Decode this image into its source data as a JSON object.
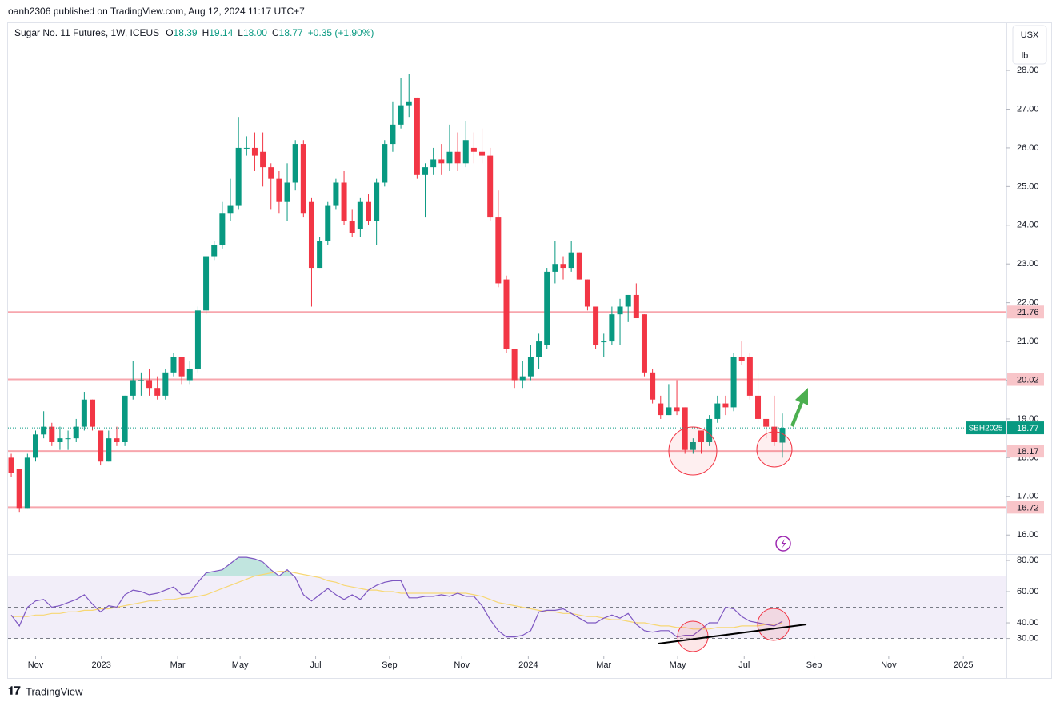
{
  "header": "oanh2306 published on TradingView.com, Aug 12, 2024 11:17 UTC+7",
  "footer": "TradingView",
  "chart_data": {
    "type": "candlestick",
    "title": "Sugar No. 11 Futures, 1W, ICEUS",
    "legend_values": [
      {
        "key": "O",
        "value": "18.39"
      },
      {
        "key": "H",
        "value": "19.14"
      },
      {
        "key": "L",
        "value": "18.00"
      },
      {
        "key": "C",
        "value": "18.77"
      }
    ],
    "change": "+0.35 (+1.90%)",
    "currency": "USX",
    "unit": "lb",
    "open": [
      18.0,
      17.7,
      16.7,
      18.0,
      18.6,
      18.8,
      18.4,
      18.5,
      18.5,
      18.8,
      19.5,
      18.7,
      17.9,
      18.5,
      18.4,
      19.6,
      20.0,
      20.0,
      19.8,
      19.6,
      20.2,
      20.6,
      20.0,
      20.3,
      21.8,
      23.2,
      23.5,
      24.3,
      24.5,
      26.0,
      26.0,
      25.9,
      25.5,
      25.2,
      24.6,
      25.1,
      26.1,
      24.6,
      22.9,
      23.6,
      24.5,
      25.1,
      24.1,
      23.9,
      24.6,
      24.1,
      25.1,
      26.1,
      26.6,
      27.1,
      27.3,
      25.3,
      25.5,
      25.7,
      25.6,
      25.9,
      25.6,
      26.0,
      25.9,
      25.8,
      24.2,
      22.6,
      20.8,
      20.0,
      20.1,
      20.6,
      20.9,
      22.8,
      23.0,
      22.9,
      23.3,
      22.6,
      21.9,
      21.0,
      21.0,
      21.7,
      21.9,
      22.2,
      21.7,
      20.2,
      19.4,
      19.1,
      19.3,
      19.3,
      18.2,
      18.7,
      18.4,
      19.0,
      19.4,
      19.3,
      20.6,
      20.6,
      19.6,
      19.0,
      18.8,
      18.39
    ],
    "high": [
      18.1,
      17.7,
      18.1,
      18.7,
      19.2,
      18.9,
      18.8,
      18.7,
      19.0,
      19.7,
      19.5,
      18.7,
      18.7,
      18.8,
      19.6,
      20.5,
      20.2,
      20.3,
      20.1,
      20.3,
      20.7,
      20.6,
      20.5,
      21.9,
      23.2,
      23.6,
      24.6,
      25.2,
      26.8,
      26.3,
      26.4,
      26.4,
      25.6,
      25.4,
      25.6,
      26.2,
      26.2,
      24.7,
      23.7,
      24.6,
      25.2,
      25.4,
      24.4,
      24.7,
      24.8,
      25.2,
      26.2,
      27.2,
      27.8,
      27.9,
      27.3,
      25.6,
      26.0,
      26.1,
      26.6,
      26.4,
      26.7,
      26.4,
      26.5,
      26.0,
      24.9,
      22.7,
      20.8,
      20.5,
      20.9,
      21.2,
      22.9,
      23.6,
      23.2,
      23.6,
      23.3,
      22.6,
      21.9,
      21.2,
      21.9,
      22.1,
      22.2,
      22.5,
      21.7,
      20.3,
      19.6,
      19.9,
      20.0,
      19.3,
      18.5,
      18.7,
      19.1,
      19.6,
      19.6,
      20.7,
      21.0,
      20.7,
      20.2,
      19.0,
      19.6,
      19.14
    ],
    "low": [
      17.5,
      16.6,
      16.7,
      17.9,
      18.5,
      18.3,
      18.2,
      18.2,
      18.4,
      18.7,
      18.7,
      17.8,
      17.9,
      18.3,
      18.3,
      19.5,
      19.6,
      19.6,
      19.5,
      19.5,
      20.1,
      19.9,
      19.9,
      20.2,
      21.7,
      23.1,
      23.4,
      24.1,
      24.4,
      25.8,
      25.4,
      25.0,
      24.4,
      24.3,
      24.1,
      24.9,
      24.2,
      21.9,
      22.9,
      23.5,
      24.4,
      24.0,
      23.7,
      23.7,
      24.0,
      23.5,
      25.0,
      25.9,
      26.5,
      26.8,
      25.2,
      24.2,
      25.3,
      25.3,
      25.4,
      25.4,
      25.5,
      25.6,
      25.6,
      24.1,
      22.4,
      20.7,
      19.8,
      19.8,
      20.0,
      20.3,
      20.8,
      22.5,
      22.6,
      22.8,
      22.6,
      21.8,
      20.8,
      20.6,
      20.9,
      20.9,
      21.5,
      21.6,
      20.1,
      19.4,
      19.0,
      19.1,
      19.1,
      18.1,
      18.1,
      18.1,
      18.3,
      18.9,
      19.1,
      19.2,
      20.4,
      19.5,
      18.9,
      18.5,
      18.3,
      18.0
    ],
    "close": [
      17.6,
      16.7,
      18.0,
      18.6,
      18.8,
      18.4,
      18.5,
      18.5,
      18.8,
      19.5,
      18.8,
      17.9,
      18.5,
      18.4,
      19.6,
      20.0,
      20.0,
      19.8,
      19.6,
      20.2,
      20.6,
      20.1,
      20.3,
      21.8,
      23.2,
      23.5,
      24.3,
      24.5,
      26.0,
      26.0,
      25.8,
      25.5,
      25.2,
      24.6,
      25.1,
      26.1,
      24.3,
      22.9,
      23.6,
      24.5,
      25.1,
      24.1,
      23.8,
      24.6,
      24.1,
      25.1,
      26.1,
      26.6,
      27.1,
      27.2,
      25.3,
      25.5,
      25.7,
      25.6,
      25.9,
      25.6,
      26.2,
      25.9,
      25.8,
      24.2,
      22.5,
      20.8,
      20.0,
      20.1,
      20.6,
      21.0,
      22.8,
      23.0,
      22.9,
      23.3,
      22.6,
      21.9,
      20.9,
      21.0,
      21.7,
      21.9,
      22.2,
      21.6,
      20.2,
      19.5,
      19.1,
      19.3,
      19.2,
      18.2,
      18.4,
      18.4,
      19.0,
      19.4,
      19.3,
      20.6,
      20.5,
      19.6,
      19.0,
      18.8,
      18.4,
      18.77
    ],
    "up_color": "#089981",
    "down_color": "#f23645",
    "xlim": [
      -0.4,
      122.6
    ],
    "xticks": [
      {
        "value": 3.0,
        "label": "Nov"
      },
      {
        "value": 11.1,
        "label": "2023"
      },
      {
        "value": 20.5,
        "label": "Mar"
      },
      {
        "value": 28.2,
        "label": "May"
      },
      {
        "value": 37.5,
        "label": "Jul"
      },
      {
        "value": 46.6,
        "label": "Sep"
      },
      {
        "value": 55.5,
        "label": "Nov"
      },
      {
        "value": 63.7,
        "label": "2024"
      },
      {
        "value": 73.0,
        "label": "Mar"
      },
      {
        "value": 82.1,
        "label": "May"
      },
      {
        "value": 90.3,
        "label": "Jul"
      },
      {
        "value": 98.9,
        "label": "Sep"
      },
      {
        "value": 108.1,
        "label": "Nov"
      },
      {
        "value": 117.3,
        "label": "2025"
      }
    ],
    "ylim": [
      15.53,
      29.24
    ],
    "yticks": [
      {
        "value": 16,
        "label": "16.00"
      },
      {
        "value": 17,
        "label": "17.00"
      },
      {
        "value": 18,
        "label": "18.00"
      },
      {
        "value": 19,
        "label": "19.00"
      },
      {
        "value": 20,
        "label": "20.00"
      },
      {
        "value": 21,
        "label": "21.00"
      },
      {
        "value": 22,
        "label": "22.00"
      },
      {
        "value": 23,
        "label": "23.00"
      },
      {
        "value": 24,
        "label": "24.00"
      },
      {
        "value": 25,
        "label": "25.00"
      },
      {
        "value": 26,
        "label": "26.00"
      },
      {
        "value": 27,
        "label": "27.00"
      },
      {
        "value": 28,
        "label": "28.00"
      }
    ],
    "levels": [
      21.76,
      20.02,
      18.17,
      16.72
    ],
    "level_color": "#f7a6ad",
    "last_price": {
      "value": 18.77,
      "symbol": "SBH2025"
    },
    "rsi": {
      "values": [
        45,
        38,
        50,
        54,
        55,
        50,
        51,
        53,
        55,
        58,
        52,
        47,
        51,
        50,
        58,
        61,
        60,
        58,
        59,
        61,
        63,
        58,
        59,
        66,
        72,
        73,
        74,
        78,
        82,
        82,
        81,
        79,
        74,
        70,
        74,
        69,
        58,
        54,
        58,
        62,
        58,
        55,
        58,
        55,
        61,
        64,
        66,
        67,
        67,
        56,
        56,
        57,
        57,
        58,
        57,
        59,
        57,
        57,
        51,
        42,
        35,
        31,
        31,
        32,
        35,
        47,
        48,
        48,
        49,
        46,
        43,
        40,
        40,
        43,
        45,
        43,
        46,
        39,
        35,
        34,
        35,
        35,
        31,
        32,
        32,
        36,
        40,
        40,
        50,
        49,
        44,
        41,
        40,
        39,
        38,
        41
      ],
      "ma": [
        44,
        44,
        44,
        45,
        45,
        46,
        46,
        47,
        47,
        48,
        48,
        49,
        49,
        50,
        51,
        52,
        53,
        54,
        54,
        55,
        55,
        56,
        56,
        57,
        58,
        60,
        62,
        64,
        66,
        68,
        70,
        71,
        72,
        73,
        73,
        72,
        71,
        70,
        69,
        67,
        66,
        64,
        63,
        62,
        61,
        61,
        60,
        60,
        59,
        59,
        59,
        59,
        59,
        59,
        59,
        59,
        59,
        58,
        57,
        55,
        53,
        52,
        51,
        50,
        49,
        48,
        47,
        47,
        46,
        46,
        45,
        44,
        44,
        43,
        42,
        42,
        41,
        40,
        40,
        39,
        38,
        38,
        37,
        37,
        36,
        36,
        36,
        37,
        37,
        37,
        38,
        38,
        38,
        39,
        39,
        40
      ],
      "color": "#7e57c2",
      "ma_color": "#f7d774",
      "ylim": [
        19.0,
        83.6
      ],
      "yticks": [
        {
          "value": 30,
          "label": "30.00"
        },
        {
          "value": 40,
          "label": "40.00"
        },
        {
          "value": 60,
          "label": "60.00"
        },
        {
          "value": 80,
          "label": "80.00"
        }
      ],
      "levels": [
        70,
        50,
        30
      ]
    }
  }
}
